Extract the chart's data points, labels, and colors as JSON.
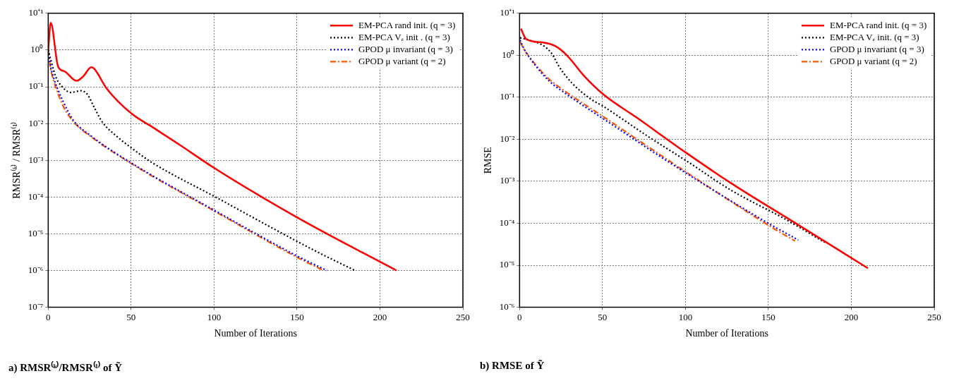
{
  "chart_data": [
    {
      "type": "line",
      "title": "a) RMSR⁽ᵏ⁾/RMSR⁽¹⁾ of Ỹ",
      "xlabel": "Number of Iterations",
      "ylabel": "RMSR⁽ᵏ⁾ / RMSR⁽¹⁾",
      "log": "y",
      "grid": true,
      "legend": "top right",
      "xlim": [
        0,
        250
      ],
      "xticks": [
        0,
        50,
        100,
        150,
        200,
        250
      ],
      "ylim": [
        1e-07,
        10
      ],
      "yticks": [
        {
          "value": 10,
          "label": "10⁺¹"
        },
        {
          "value": 1,
          "label": "10⁰"
        },
        {
          "value": 0.1,
          "label": "10⁻¹"
        },
        {
          "value": 0.01,
          "label": "10⁻²"
        },
        {
          "value": 0.001,
          "label": "10⁻³"
        },
        {
          "value": 0.0001,
          "label": "10⁻⁴"
        },
        {
          "value": 1e-05,
          "label": "10⁻⁵"
        },
        {
          "value": 1e-06,
          "label": "10⁻⁶"
        },
        {
          "value": 1e-07,
          "label": "10⁻⁷"
        }
      ],
      "series": [
        {
          "name": "EM-PCA rand init. (q = 3)",
          "color": "#ff0000",
          "line_style": "solid",
          "x": [
            0,
            1.5,
            6,
            10,
            17,
            21,
            26,
            28,
            35,
            50,
            64,
            80,
            100,
            150,
            210
          ],
          "values": [
            1,
            5.5,
            0.35,
            0.26,
            0.145,
            0.19,
            0.34,
            0.3,
            0.093,
            0.019,
            0.0074,
            0.0025,
            0.00062,
            2.8e-05,
            1e-06
          ]
        },
        {
          "name": "EM-PCA Vₑ init . (q = 3)",
          "color": "#000000",
          "line_style": "dotted",
          "x": [
            0,
            4.5,
            7.6,
            13.6,
            19.7,
            23.5,
            28,
            32.6,
            41,
            50,
            62,
            100,
            160.6,
            185
          ],
          "values": [
            1,
            0.19,
            0.11,
            0.07,
            0.078,
            0.063,
            0.026,
            0.011,
            0.0046,
            0.0022,
            0.0009,
            0.000105,
            3.5e-06,
            1e-06
          ]
        },
        {
          "name": "GPOD μ invariant (q = 3)",
          "color": "#0000ff",
          "line_style": "dotted",
          "x": [
            0,
            1.5,
            3,
            9,
            15,
            25.8,
            50,
            100,
            150,
            168
          ],
          "values": [
            1,
            0.35,
            0.19,
            0.04,
            0.0125,
            0.0046,
            0.00085,
            4.4e-05,
            2.5e-06,
            1e-06
          ]
        },
        {
          "name": "GPOD μ variant (q = 2)",
          "color": "#ff5500",
          "line_style": "dashed",
          "x": [
            0,
            1.5,
            3,
            9,
            15,
            25.8,
            50,
            100,
            150,
            166
          ],
          "values": [
            1,
            0.3,
            0.16,
            0.03,
            0.0115,
            0.0044,
            0.00082,
            4.2e-05,
            2.3e-06,
            1e-06
          ]
        }
      ]
    },
    {
      "type": "line",
      "title": "b) RMSE of Ỹ",
      "xlabel": "Number of Iterations",
      "ylabel": "RMSE",
      "log": "y",
      "grid": true,
      "legend": "top right",
      "xlim": [
        0,
        250
      ],
      "xticks": [
        0,
        50,
        100,
        150,
        200,
        250
      ],
      "ylim": [
        1e-06,
        10
      ],
      "yticks": [
        {
          "value": 10,
          "label": "10⁺¹"
        },
        {
          "value": 1,
          "label": "10⁰"
        },
        {
          "value": 0.1,
          "label": "10⁻¹"
        },
        {
          "value": 0.01,
          "label": "10⁻²"
        },
        {
          "value": 0.001,
          "label": "10⁻³"
        },
        {
          "value": 0.0001,
          "label": "10⁻⁴"
        },
        {
          "value": 1e-05,
          "label": "10⁻⁵"
        },
        {
          "value": 1e-06,
          "label": "10⁻⁶"
        }
      ],
      "series": [
        {
          "name": "EM-PCA rand init. (q = 3)",
          "color": "#ff0000",
          "line_style": "solid",
          "x": [
            0.8,
            4.1,
            14.8,
            21.6,
            28.5,
            39,
            50.5,
            71,
            100,
            127,
            164,
            210
          ],
          "values": [
            4.3,
            2.4,
            2,
            1.65,
            1,
            0.32,
            0.117,
            0.032,
            0.0049,
            0.00093,
            0.000115,
            8.5e-06
          ]
        },
        {
          "name": "EM-PCA Vₑ init. (q = 3)",
          "color": "#000000",
          "line_style": "dotted",
          "x": [
            0.3,
            5.6,
            14.8,
            19.4,
            23.9,
            31.5,
            42,
            51,
            77,
            101.5,
            127,
            160.6,
            184
          ],
          "values": [
            2.6,
            2.3,
            1.65,
            1.1,
            0.53,
            0.22,
            0.096,
            0.059,
            0.012,
            0.0029,
            0.00063,
            0.000123,
            3.5e-05
          ]
        },
        {
          "name": "GPOD μ invariant (q = 3)",
          "color": "#0000ff",
          "line_style": "dotted",
          "x": [
            0.3,
            2.6,
            5.6,
            10.2,
            17.8,
            28.5,
            49.8,
            100,
            150,
            168
          ],
          "values": [
            2.3,
            1.45,
            0.93,
            0.53,
            0.245,
            0.117,
            0.032,
            0.0016,
            0.0001,
            4e-05
          ]
        },
        {
          "name": "GPOD μ variant (q = 2)",
          "color": "#ff5500",
          "line_style": "dashed",
          "x": [
            0.3,
            2.6,
            5.6,
            10.2,
            17.8,
            28.5,
            49.8,
            100,
            150,
            166
          ],
          "values": [
            2.1,
            1.4,
            0.95,
            0.56,
            0.27,
            0.13,
            0.036,
            0.0017,
            9e-05,
            3.8e-05
          ]
        }
      ]
    }
  ]
}
